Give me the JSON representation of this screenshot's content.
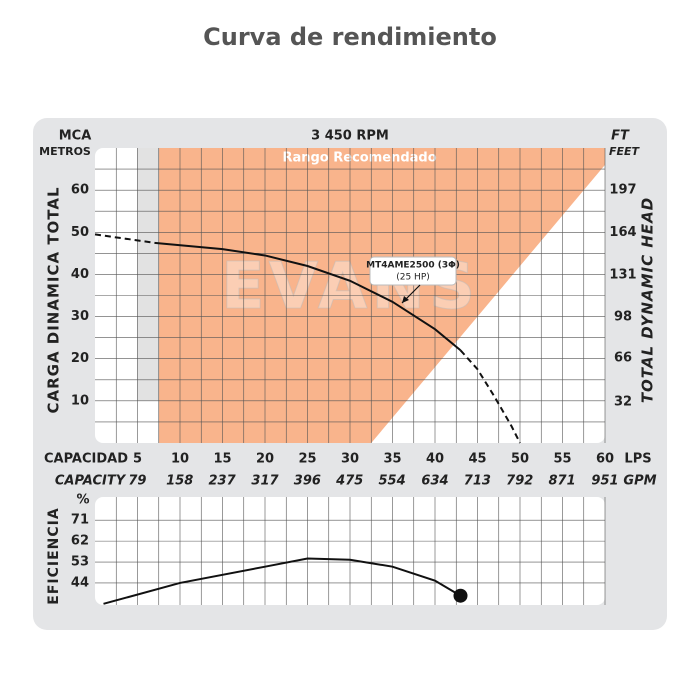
{
  "chart_data": [
    {
      "type": "line",
      "title": "Curva de rendimiento",
      "subtitle": "3 450 RPM",
      "ylabel": "CARGA DINAMICA TOTAL",
      "y_unit": "MCA",
      "y_unit_sub": "METROS",
      "y2label": "TOTAL DYNAMIC HEAD",
      "y2_unit": "FT",
      "y2_unit_sub": "FEET",
      "xlabel": "CAPACIDAD",
      "x_unit": "LPS",
      "x2label": "CAPACITY",
      "x2_unit": "GPM",
      "xlim": [
        0,
        60
      ],
      "xticks": [
        5,
        10,
        15,
        20,
        25,
        30,
        35,
        40,
        45,
        50,
        55,
        60
      ],
      "x2lim": [
        0,
        951
      ],
      "x2ticks": [
        79,
        158,
        237,
        317,
        396,
        475,
        554,
        634,
        713,
        792,
        871,
        951
      ],
      "ylim": [
        0,
        70
      ],
      "yticks": [
        10,
        20,
        30,
        40,
        50,
        60
      ],
      "y2lim": [
        0,
        229.7
      ],
      "y2ticks": [
        32,
        66,
        98,
        131,
        164,
        197
      ],
      "grid": true,
      "watermark": "EVANS",
      "region": {
        "name": "Rango Recomendado",
        "color": "#f9b48c",
        "x": [
          7.5,
          7.5,
          60,
          60,
          32.5
        ],
        "y": [
          0,
          70,
          70,
          66,
          0
        ]
      },
      "series": [
        {
          "name": "MT4AME2500 (3Φ)",
          "color": "#111111",
          "x": [
            0,
            7,
            15,
            20,
            25,
            30,
            35,
            40,
            43,
            45,
            47,
            49,
            50
          ],
          "values": [
            49.5,
            47.5,
            46,
            44.5,
            42,
            38.5,
            33.5,
            27,
            22,
            17.5,
            11,
            4,
            0
          ],
          "solid_from": 7,
          "solid_to": 43
        }
      ],
      "annotation": "(25 HP)"
    },
    {
      "type": "line",
      "ylabel": "EFICIENCIA",
      "y_unit": "%",
      "xlim": [
        0,
        60
      ],
      "xticks": [
        5,
        10,
        15,
        20,
        25,
        30,
        35,
        40,
        45,
        50,
        55,
        60
      ],
      "ylim": [
        34.5,
        81
      ],
      "yticks": [
        44,
        53,
        62,
        71
      ],
      "grid": true,
      "series": [
        {
          "color": "#111111",
          "x": [
            1,
            10,
            20,
            25,
            30,
            35,
            40,
            43
          ],
          "values": [
            35,
            44,
            51,
            54.5,
            54,
            51,
            45,
            38.5
          ]
        }
      ]
    }
  ]
}
